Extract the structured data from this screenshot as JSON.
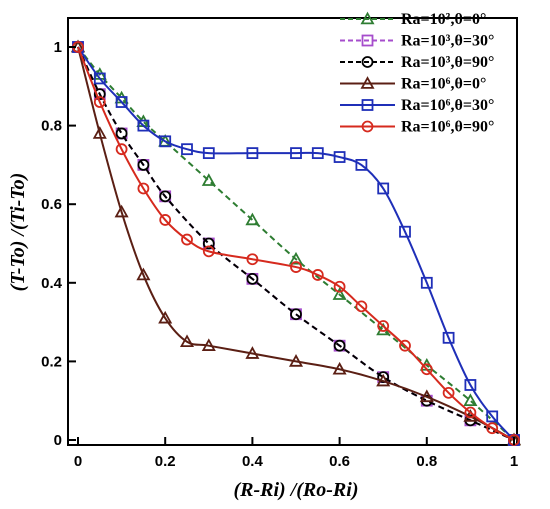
{
  "chart_data": {
    "type": "line",
    "xlabel": "(R-Ri) /(Ro-Ri)",
    "ylabel": "(T-To) /(Ti-To)",
    "xlim": [
      0,
      1
    ],
    "ylim": [
      0,
      1.06
    ],
    "xticks": [
      "0",
      "0.2",
      "0.4",
      "0.6",
      "0.8",
      "1"
    ],
    "yticks": [
      "0",
      "0.2",
      "0.4",
      "0.6",
      "0.8",
      "1"
    ],
    "grid": false,
    "legend_position": "top-right",
    "series": [
      {
        "name": "Ra=10³,θ=0°",
        "color": "#2e7d32",
        "line": "dashed",
        "marker": "triangle",
        "x": [
          0,
          0.05,
          0.1,
          0.15,
          0.2,
          0.3,
          0.4,
          0.5,
          0.6,
          0.7,
          0.8,
          0.9,
          1.0
        ],
        "y": [
          1.0,
          0.93,
          0.87,
          0.81,
          0.76,
          0.66,
          0.56,
          0.46,
          0.37,
          0.28,
          0.19,
          0.1,
          0.0
        ]
      },
      {
        "name": "Ra=10³,θ=30°",
        "color": "#a64dcc",
        "line": "dashed",
        "marker": "square",
        "x": [
          0,
          0.05,
          0.1,
          0.15,
          0.2,
          0.3,
          0.4,
          0.5,
          0.6,
          0.7,
          0.8,
          0.9,
          1.0
        ],
        "y": [
          1.0,
          0.88,
          0.78,
          0.7,
          0.62,
          0.5,
          0.41,
          0.32,
          0.24,
          0.16,
          0.1,
          0.05,
          0.0
        ]
      },
      {
        "name": "Ra=10³,θ=90°",
        "color": "#000000",
        "line": "dashed",
        "marker": "circle",
        "x": [
          0,
          0.05,
          0.1,
          0.15,
          0.2,
          0.3,
          0.4,
          0.5,
          0.6,
          0.7,
          0.8,
          0.9,
          1.0
        ],
        "y": [
          1.0,
          0.88,
          0.78,
          0.7,
          0.62,
          0.5,
          0.41,
          0.32,
          0.24,
          0.16,
          0.1,
          0.05,
          0.0
        ]
      },
      {
        "name": "Ra=10⁶,θ=0°",
        "color": "#5b1f14",
        "line": "solid",
        "marker": "triangle",
        "x": [
          0,
          0.05,
          0.1,
          0.15,
          0.2,
          0.25,
          0.3,
          0.4,
          0.5,
          0.6,
          0.7,
          0.8,
          0.9,
          1.0
        ],
        "y": [
          1.0,
          0.78,
          0.58,
          0.42,
          0.31,
          0.25,
          0.24,
          0.22,
          0.2,
          0.18,
          0.15,
          0.11,
          0.06,
          0.0
        ]
      },
      {
        "name": "Ra=10⁶,θ=30°",
        "color": "#1f2fb8",
        "line": "solid",
        "marker": "square",
        "x": [
          0,
          0.05,
          0.1,
          0.15,
          0.2,
          0.25,
          0.3,
          0.4,
          0.5,
          0.55,
          0.6,
          0.65,
          0.7,
          0.75,
          0.8,
          0.85,
          0.9,
          0.95,
          1.0
        ],
        "y": [
          1.0,
          0.92,
          0.86,
          0.8,
          0.76,
          0.74,
          0.73,
          0.73,
          0.73,
          0.73,
          0.72,
          0.7,
          0.64,
          0.53,
          0.4,
          0.26,
          0.14,
          0.06,
          0.0
        ]
      },
      {
        "name": "Ra=10⁶,θ=90°",
        "color": "#d62a1e",
        "line": "solid",
        "marker": "circle",
        "x": [
          0,
          0.05,
          0.1,
          0.15,
          0.2,
          0.25,
          0.3,
          0.4,
          0.5,
          0.55,
          0.6,
          0.65,
          0.7,
          0.75,
          0.8,
          0.85,
          0.9,
          0.95,
          1.0
        ],
        "y": [
          1.0,
          0.86,
          0.74,
          0.64,
          0.56,
          0.51,
          0.48,
          0.46,
          0.44,
          0.42,
          0.39,
          0.34,
          0.29,
          0.24,
          0.18,
          0.12,
          0.07,
          0.03,
          0.0
        ]
      }
    ]
  }
}
